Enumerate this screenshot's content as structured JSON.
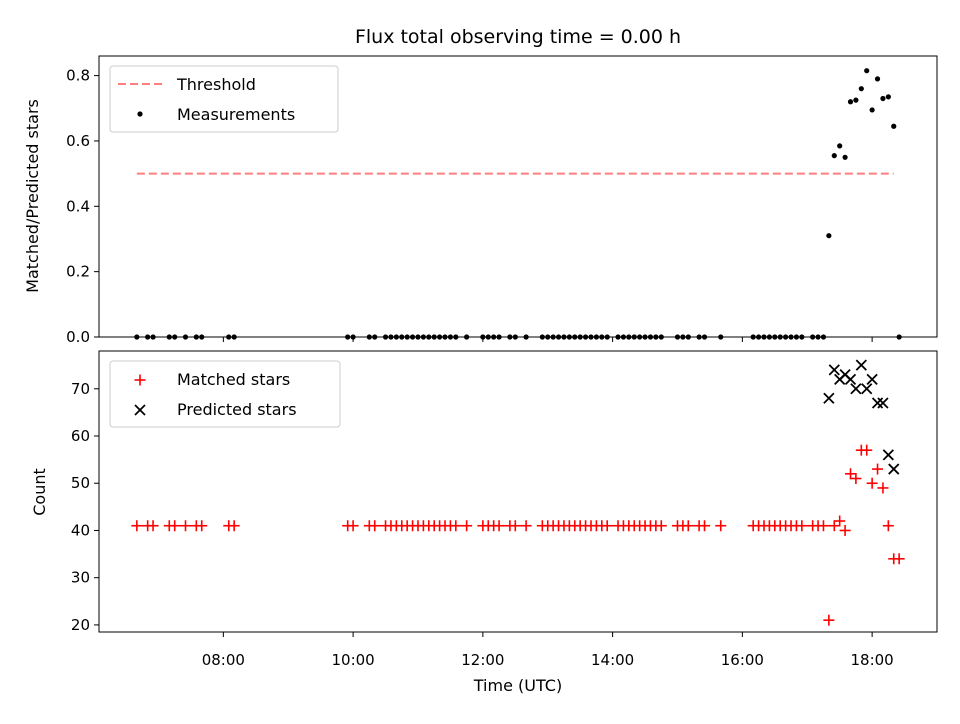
{
  "chart_data": [
    {
      "type": "scatter",
      "title": "Flux total observing time = 0.00 h",
      "xlabel": "",
      "ylabel": "Matched/Predicted stars",
      "ylim": [
        0,
        0.86
      ],
      "yticks": [
        "0.0",
        "0.2",
        "0.4",
        "0.6",
        "0.8"
      ],
      "x_axis": "time (UTC), shared with lower panel; tick labels hidden",
      "legend_position": "top-left",
      "series": [
        {
          "name": "Threshold",
          "style": "dashed-line",
          "color": "#ff7f7f",
          "points": [
            [
              "06:40",
              0.5
            ],
            [
              "18:20",
              0.5
            ]
          ]
        },
        {
          "name": "Measurements",
          "style": "dot",
          "color": "#000000",
          "points": [
            [
              "06:40",
              0.0
            ],
            [
              "06:50",
              0.0
            ],
            [
              "06:55",
              0.0
            ],
            [
              "07:10",
              0.0
            ],
            [
              "07:15",
              0.0
            ],
            [
              "07:25",
              0.0
            ],
            [
              "07:35",
              0.0
            ],
            [
              "07:40",
              0.0
            ],
            [
              "08:05",
              0.0
            ],
            [
              "08:10",
              0.0
            ],
            [
              "09:55",
              0.0
            ],
            [
              "10:00",
              0.0
            ],
            [
              "10:15",
              0.0
            ],
            [
              "10:20",
              0.0
            ],
            [
              "10:30",
              0.0
            ],
            [
              "10:35",
              0.0
            ],
            [
              "10:40",
              0.0
            ],
            [
              "10:45",
              0.0
            ],
            [
              "10:50",
              0.0
            ],
            [
              "10:55",
              0.0
            ],
            [
              "11:00",
              0.0
            ],
            [
              "11:05",
              0.0
            ],
            [
              "11:10",
              0.0
            ],
            [
              "11:15",
              0.0
            ],
            [
              "11:20",
              0.0
            ],
            [
              "11:25",
              0.0
            ],
            [
              "11:30",
              0.0
            ],
            [
              "11:35",
              0.0
            ],
            [
              "11:45",
              0.0
            ],
            [
              "12:00",
              0.0
            ],
            [
              "12:05",
              0.0
            ],
            [
              "12:10",
              0.0
            ],
            [
              "12:15",
              0.0
            ],
            [
              "12:25",
              0.0
            ],
            [
              "12:30",
              0.0
            ],
            [
              "12:40",
              0.0
            ],
            [
              "12:55",
              0.0
            ],
            [
              "13:00",
              0.0
            ],
            [
              "13:05",
              0.0
            ],
            [
              "13:10",
              0.0
            ],
            [
              "13:15",
              0.0
            ],
            [
              "13:20",
              0.0
            ],
            [
              "13:25",
              0.0
            ],
            [
              "13:30",
              0.0
            ],
            [
              "13:35",
              0.0
            ],
            [
              "13:40",
              0.0
            ],
            [
              "13:45",
              0.0
            ],
            [
              "13:50",
              0.0
            ],
            [
              "13:55",
              0.0
            ],
            [
              "14:05",
              0.0
            ],
            [
              "14:10",
              0.0
            ],
            [
              "14:15",
              0.0
            ],
            [
              "14:20",
              0.0
            ],
            [
              "14:25",
              0.0
            ],
            [
              "14:30",
              0.0
            ],
            [
              "14:35",
              0.0
            ],
            [
              "14:40",
              0.0
            ],
            [
              "14:45",
              0.0
            ],
            [
              "15:00",
              0.0
            ],
            [
              "15:05",
              0.0
            ],
            [
              "15:10",
              0.0
            ],
            [
              "15:20",
              0.0
            ],
            [
              "15:25",
              0.0
            ],
            [
              "15:40",
              0.0
            ],
            [
              "16:10",
              0.0
            ],
            [
              "16:15",
              0.0
            ],
            [
              "16:20",
              0.0
            ],
            [
              "16:25",
              0.0
            ],
            [
              "16:30",
              0.0
            ],
            [
              "16:35",
              0.0
            ],
            [
              "16:40",
              0.0
            ],
            [
              "16:45",
              0.0
            ],
            [
              "16:50",
              0.0
            ],
            [
              "16:55",
              0.0
            ],
            [
              "17:05",
              0.0
            ],
            [
              "17:10",
              0.0
            ],
            [
              "17:15",
              0.0
            ],
            [
              "17:20",
              0.31
            ],
            [
              "17:25",
              0.555
            ],
            [
              "17:30",
              0.585
            ],
            [
              "17:35",
              0.55
            ],
            [
              "17:40",
              0.72
            ],
            [
              "17:45",
              0.725
            ],
            [
              "17:50",
              0.76
            ],
            [
              "17:55",
              0.815
            ],
            [
              "18:00",
              0.695
            ],
            [
              "18:05",
              0.79
            ],
            [
              "18:10",
              0.73
            ],
            [
              "18:15",
              0.735
            ],
            [
              "18:20",
              0.645
            ],
            [
              "18:25",
              0.0
            ]
          ]
        }
      ]
    },
    {
      "type": "scatter",
      "title": "",
      "xlabel": "Time (UTC)",
      "ylabel": "Count",
      "ylim": [
        18.5,
        78
      ],
      "yticks": [
        "20",
        "30",
        "40",
        "50",
        "60",
        "70"
      ],
      "xticks": [
        "08:00",
        "10:00",
        "12:00",
        "14:00",
        "16:00",
        "18:00"
      ],
      "xlim": [
        "06:05",
        "19:00"
      ],
      "legend_position": "top-left",
      "series": [
        {
          "name": "Matched stars",
          "style": "plus",
          "color": "#ff0000",
          "points": [
            [
              "06:40",
              41
            ],
            [
              "06:50",
              41
            ],
            [
              "06:55",
              41
            ],
            [
              "07:10",
              41
            ],
            [
              "07:15",
              41
            ],
            [
              "07:25",
              41
            ],
            [
              "07:35",
              41
            ],
            [
              "07:40",
              41
            ],
            [
              "08:05",
              41
            ],
            [
              "08:10",
              41
            ],
            [
              "09:55",
              41
            ],
            [
              "10:00",
              41
            ],
            [
              "10:15",
              41
            ],
            [
              "10:20",
              41
            ],
            [
              "10:30",
              41
            ],
            [
              "10:35",
              41
            ],
            [
              "10:40",
              41
            ],
            [
              "10:45",
              41
            ],
            [
              "10:50",
              41
            ],
            [
              "10:55",
              41
            ],
            [
              "11:00",
              41
            ],
            [
              "11:05",
              41
            ],
            [
              "11:10",
              41
            ],
            [
              "11:15",
              41
            ],
            [
              "11:20",
              41
            ],
            [
              "11:25",
              41
            ],
            [
              "11:30",
              41
            ],
            [
              "11:35",
              41
            ],
            [
              "11:45",
              41
            ],
            [
              "12:00",
              41
            ],
            [
              "12:05",
              41
            ],
            [
              "12:10",
              41
            ],
            [
              "12:15",
              41
            ],
            [
              "12:25",
              41
            ],
            [
              "12:30",
              41
            ],
            [
              "12:40",
              41
            ],
            [
              "12:55",
              41
            ],
            [
              "13:00",
              41
            ],
            [
              "13:05",
              41
            ],
            [
              "13:10",
              41
            ],
            [
              "13:15",
              41
            ],
            [
              "13:20",
              41
            ],
            [
              "13:25",
              41
            ],
            [
              "13:30",
              41
            ],
            [
              "13:35",
              41
            ],
            [
              "13:40",
              41
            ],
            [
              "13:45",
              41
            ],
            [
              "13:50",
              41
            ],
            [
              "13:55",
              41
            ],
            [
              "14:05",
              41
            ],
            [
              "14:10",
              41
            ],
            [
              "14:15",
              41
            ],
            [
              "14:20",
              41
            ],
            [
              "14:25",
              41
            ],
            [
              "14:30",
              41
            ],
            [
              "14:35",
              41
            ],
            [
              "14:40",
              41
            ],
            [
              "14:45",
              41
            ],
            [
              "15:00",
              41
            ],
            [
              "15:05",
              41
            ],
            [
              "15:10",
              41
            ],
            [
              "15:20",
              41
            ],
            [
              "15:25",
              41
            ],
            [
              "15:40",
              41
            ],
            [
              "16:10",
              41
            ],
            [
              "16:15",
              41
            ],
            [
              "16:20",
              41
            ],
            [
              "16:25",
              41
            ],
            [
              "16:30",
              41
            ],
            [
              "16:35",
              41
            ],
            [
              "16:40",
              41
            ],
            [
              "16:45",
              41
            ],
            [
              "16:50",
              41
            ],
            [
              "16:55",
              41
            ],
            [
              "17:05",
              41
            ],
            [
              "17:10",
              41
            ],
            [
              "17:15",
              41
            ],
            [
              "17:20",
              21
            ],
            [
              "17:25",
              41
            ],
            [
              "17:30",
              42
            ],
            [
              "17:35",
              40
            ],
            [
              "17:40",
              52
            ],
            [
              "17:45",
              51
            ],
            [
              "17:50",
              57
            ],
            [
              "17:55",
              57
            ],
            [
              "18:00",
              50
            ],
            [
              "18:05",
              53
            ],
            [
              "18:10",
              49
            ],
            [
              "18:15",
              41
            ],
            [
              "18:20",
              34
            ],
            [
              "18:25",
              34
            ]
          ]
        },
        {
          "name": "Predicted stars",
          "style": "x",
          "color": "#000000",
          "points": [
            [
              "17:20",
              68
            ],
            [
              "17:25",
              74
            ],
            [
              "17:30",
              72
            ],
            [
              "17:35",
              73
            ],
            [
              "17:40",
              72
            ],
            [
              "17:45",
              70
            ],
            [
              "17:50",
              75
            ],
            [
              "17:55",
              70
            ],
            [
              "18:00",
              72
            ],
            [
              "18:05",
              67
            ],
            [
              "18:10",
              67
            ],
            [
              "18:15",
              56
            ],
            [
              "18:20",
              53
            ]
          ]
        }
      ]
    }
  ]
}
